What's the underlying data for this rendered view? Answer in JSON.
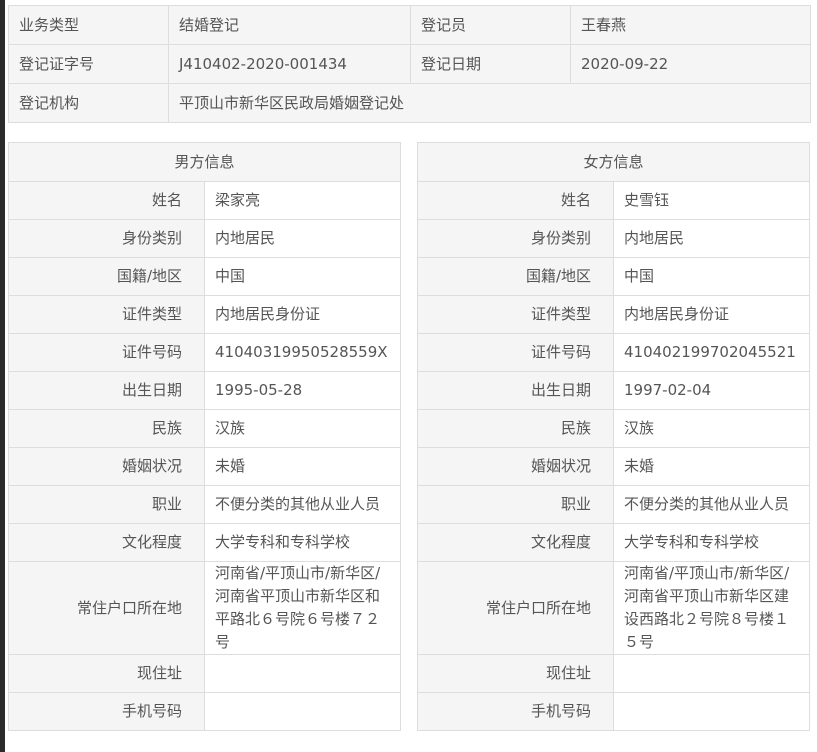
{
  "summary": {
    "business_type_label": "业务类型",
    "business_type": "结婚登记",
    "registrar_label": "登记员",
    "registrar": "王春燕",
    "cert_no_label": "登记证字号",
    "cert_no": "J410402-2020-001434",
    "reg_date_label": "登记日期",
    "reg_date": "2020-09-22",
    "agency_label": "登记机构",
    "agency": "平顶山市新华区民政局婚姻登记处"
  },
  "labels": [
    "姓名",
    "身份类别",
    "国籍/地区",
    "证件类型",
    "证件号码",
    "出生日期",
    "民族",
    "婚姻状况",
    "职业",
    "文化程度",
    "常住户口所在地",
    "现住址",
    "手机号码"
  ],
  "male": {
    "title": "男方信息",
    "values": [
      "梁家亮",
      "内地居民",
      "中国",
      "内地居民身份证",
      "41040319950528559X",
      "1995-05-28",
      "汉族",
      "未婚",
      "不便分类的其他从业人员",
      "大学专科和专科学校",
      "河南省/平顶山市/新华区/河南省平顶山市新华区和平路北６号院６号楼７２号",
      "",
      ""
    ]
  },
  "female": {
    "title": "女方信息",
    "values": [
      "史雪钰",
      "内地居民",
      "中国",
      "内地居民身份证",
      "410402199702045521",
      "1997-02-04",
      "汉族",
      "未婚",
      "不便分类的其他从业人员",
      "大学专科和专科学校",
      "河南省/平顶山市/新华区/河南省平顶山市新华区建设西路北２号院８号楼１５号",
      "",
      ""
    ]
  }
}
